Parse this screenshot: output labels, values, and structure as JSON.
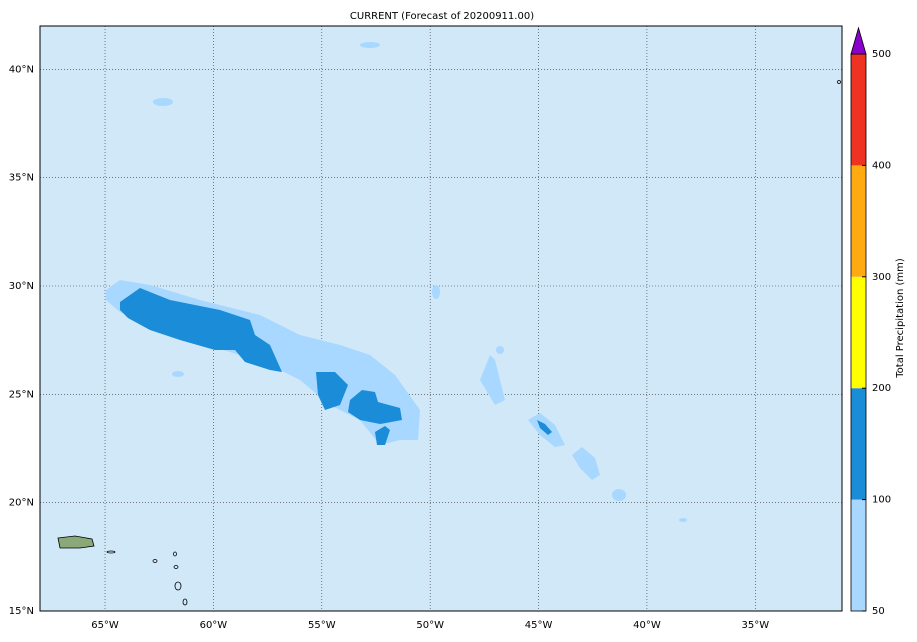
{
  "chart_data": {
    "type": "map",
    "title": "CURRENT (Forecast of 20200911.00)",
    "xlim": [
      -68,
      -31
    ],
    "ylim": [
      15,
      42
    ],
    "xticks": [
      {
        "value": -65,
        "label": "65°W"
      },
      {
        "value": -60,
        "label": "60°W"
      },
      {
        "value": -55,
        "label": "55°W"
      },
      {
        "value": -50,
        "label": "50°W"
      },
      {
        "value": -45,
        "label": "45°W"
      },
      {
        "value": -40,
        "label": "40°W"
      },
      {
        "value": -35,
        "label": "35°W"
      }
    ],
    "yticks": [
      {
        "value": 15,
        "label": "15°N"
      },
      {
        "value": 20,
        "label": "20°N"
      },
      {
        "value": 25,
        "label": "25°N"
      },
      {
        "value": 30,
        "label": "30°N"
      },
      {
        "value": 35,
        "label": "35°N"
      },
      {
        "value": 40,
        "label": "40°N"
      }
    ],
    "grid": true,
    "colorbar": {
      "label": "Total Precipitation (mm)",
      "ticks": [
        50,
        100,
        200,
        300,
        400,
        500
      ],
      "colors": [
        "#a8d8ff",
        "#1a8cd8",
        "#ffff00",
        "#ffaa10",
        "#ee3322"
      ],
      "extend_color": "#8a00cc"
    }
  }
}
